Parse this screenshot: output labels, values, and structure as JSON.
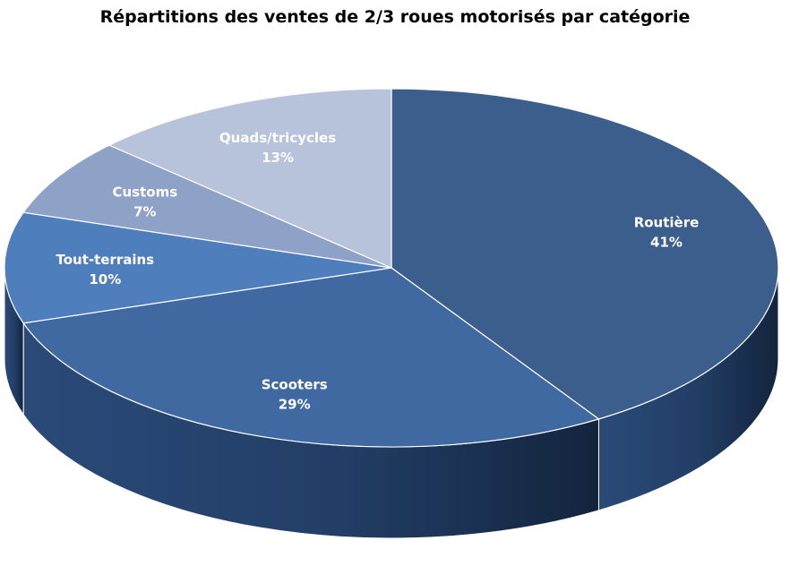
{
  "chart_data": {
    "type": "pie",
    "title": "Répartitions des ventes de 2/3 roues motorisés par catégorie",
    "slices": [
      {
        "label": "Routière",
        "value": 41,
        "value_label": "41%",
        "color": "#3B5E8C"
      },
      {
        "label": "Scooters",
        "value": 29,
        "value_label": "29%",
        "color": "#4169A1"
      },
      {
        "label": "Tout-terrains",
        "value": 10,
        "value_label": "10%",
        "color": "#4E7EBB"
      },
      {
        "label": "Customs",
        "value": 7,
        "value_label": "7%",
        "color": "#8EA2C8"
      },
      {
        "label": "Quads/tricycles",
        "value": 13,
        "value_label": "13%",
        "color": "#B7C3DA"
      }
    ],
    "start_angle_deg": 90,
    "direction": "clockwise",
    "style": "3d",
    "legend": "none"
  }
}
